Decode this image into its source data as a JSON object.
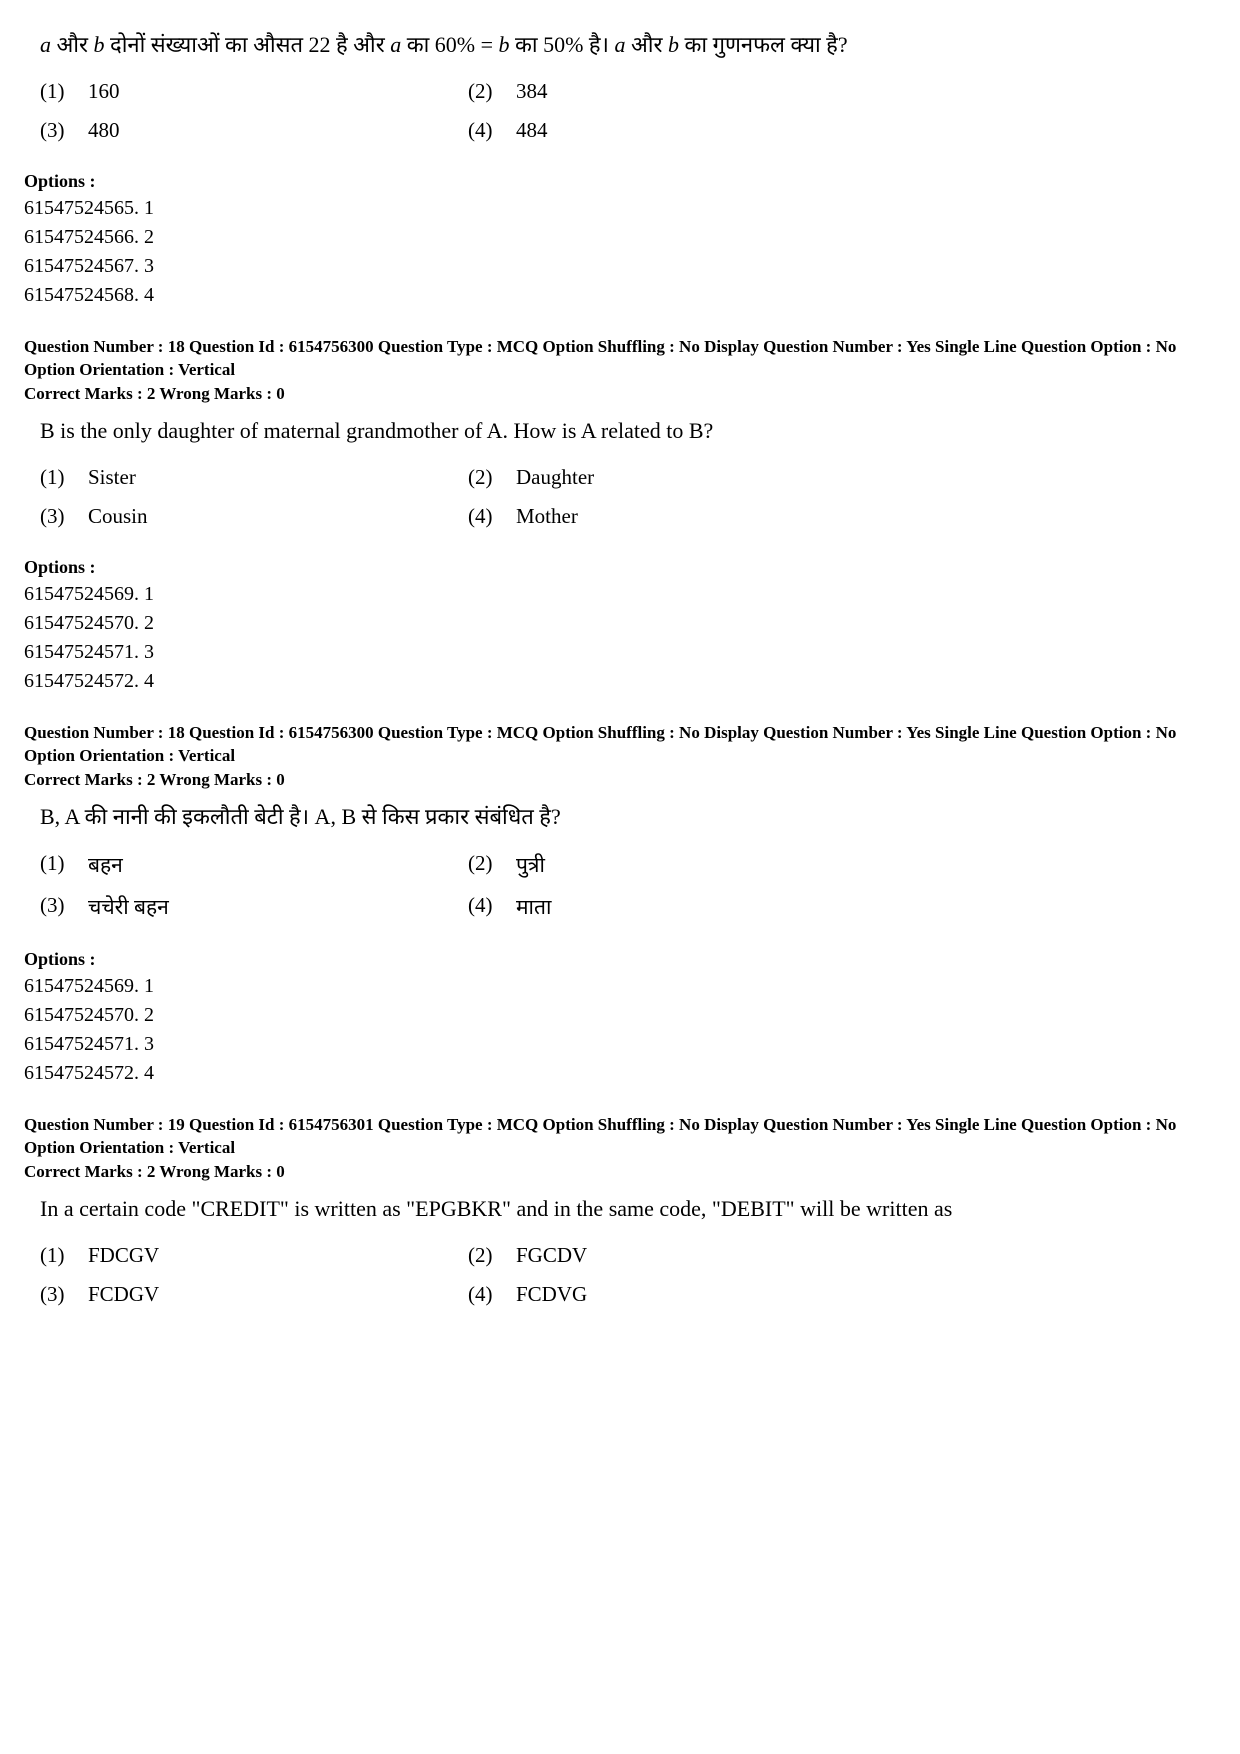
{
  "q17_hi": {
    "text_prefix": "a",
    "text_mid1": " और ",
    "text_b": "b",
    "text_mid2": " दोनों संख्याओं का औसत 22 है और ",
    "text_a2": "a",
    "text_mid3": " का 60% = ",
    "text_b2": "b",
    "text_mid4": " का 50% है। ",
    "text_a3": "a",
    "text_mid5": " और ",
    "text_b3": "b",
    "text_end": " का गुणनफल क्या है?",
    "choices": {
      "n1": "(1)",
      "v1": "160",
      "n2": "(2)",
      "v2": "384",
      "n3": "(3)",
      "v3": "480",
      "n4": "(4)",
      "v4": "484"
    },
    "opts_label": "Options :",
    "opts": [
      "61547524565. 1",
      "61547524566. 2",
      "61547524567. 3",
      "61547524568. 4"
    ]
  },
  "q18_en": {
    "meta": "Question Number : 18  Question Id : 6154756300  Question Type : MCQ  Option Shuffling : No  Display Question Number : Yes  Single Line Question Option : No  Option Orientation : Vertical",
    "marks": "Correct Marks : 2  Wrong Marks : 0",
    "text": "B is the only daughter of maternal grandmother of A. How is A related to B?",
    "choices": {
      "n1": "(1)",
      "v1": "Sister",
      "n2": "(2)",
      "v2": "Daughter",
      "n3": "(3)",
      "v3": "Cousin",
      "n4": "(4)",
      "v4": "Mother"
    },
    "opts_label": "Options :",
    "opts": [
      "61547524569. 1",
      "61547524570. 2",
      "61547524571. 3",
      "61547524572. 4"
    ]
  },
  "q18_hi": {
    "meta": "Question Number : 18  Question Id : 6154756300  Question Type : MCQ  Option Shuffling : No  Display Question Number : Yes  Single Line Question Option : No  Option Orientation : Vertical",
    "marks": "Correct Marks : 2  Wrong Marks : 0",
    "text": "B, A की नानी की इकलौती बेटी है। A, B से किस प्रकार संबंधित है?",
    "choices": {
      "n1": "(1)",
      "v1": "बहन",
      "n2": "(2)",
      "v2": "पुत्री",
      "n3": "(3)",
      "v3": "चचेरी बहन",
      "n4": "(4)",
      "v4": "माता"
    },
    "opts_label": "Options :",
    "opts": [
      "61547524569. 1",
      "61547524570. 2",
      "61547524571. 3",
      "61547524572. 4"
    ]
  },
  "q19_en": {
    "meta": "Question Number : 19  Question Id : 6154756301  Question Type : MCQ  Option Shuffling : No  Display Question Number : Yes  Single Line Question Option : No  Option Orientation : Vertical",
    "marks": "Correct Marks : 2  Wrong Marks : 0",
    "text": "In a certain code \"CREDIT\" is written as \"EPGBKR\" and in the same code, \"DEBIT\" will be written as",
    "choices": {
      "n1": "(1)",
      "v1": "FDCGV",
      "n2": "(2)",
      "v2": "FGCDV",
      "n3": "(3)",
      "v3": "FCDGV",
      "n4": "(4)",
      "v4": "FCDVG"
    }
  }
}
